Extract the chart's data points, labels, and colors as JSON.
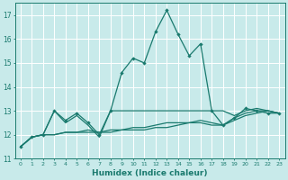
{
  "x": [
    0,
    1,
    2,
    3,
    4,
    5,
    6,
    7,
    8,
    9,
    10,
    11,
    12,
    13,
    14,
    15,
    16,
    17,
    18,
    19,
    20,
    21,
    22,
    23
  ],
  "line_main": [
    11.5,
    11.9,
    12.0,
    13.0,
    12.6,
    12.9,
    12.5,
    12.0,
    13.0,
    14.6,
    15.2,
    15.0,
    16.3,
    17.2,
    16.2,
    15.3,
    15.8,
    13.0,
    12.4,
    12.7,
    13.1,
    13.0,
    12.9,
    12.9
  ],
  "line_flat1": [
    11.5,
    11.9,
    12.0,
    13.0,
    12.5,
    12.8,
    12.4,
    11.9,
    13.0,
    13.0,
    13.0,
    13.0,
    13.0,
    13.0,
    13.0,
    13.0,
    13.0,
    13.0,
    13.0,
    12.8,
    13.0,
    13.1,
    13.0,
    12.9
  ],
  "line_flat2": [
    11.5,
    11.9,
    12.0,
    12.0,
    12.1,
    12.1,
    12.2,
    12.1,
    12.2,
    12.2,
    12.3,
    12.3,
    12.4,
    12.5,
    12.5,
    12.5,
    12.6,
    12.5,
    12.4,
    12.7,
    12.9,
    13.0,
    13.0,
    12.9
  ],
  "line_flat3": [
    11.5,
    11.9,
    12.0,
    12.0,
    12.1,
    12.1,
    12.1,
    12.1,
    12.1,
    12.2,
    12.2,
    12.2,
    12.3,
    12.3,
    12.4,
    12.5,
    12.5,
    12.4,
    12.4,
    12.6,
    12.8,
    12.9,
    13.0,
    12.9
  ],
  "color": "#1a7a6e",
  "bg_color": "#c8eaea",
  "grid_color": "#b0d0d0",
  "xlim": [
    -0.5,
    23.5
  ],
  "ylim": [
    11,
    17.5
  ],
  "yticks": [
    11,
    12,
    13,
    14,
    15,
    16,
    17
  ],
  "xticks": [
    0,
    1,
    2,
    3,
    4,
    5,
    6,
    7,
    8,
    9,
    10,
    11,
    12,
    13,
    14,
    15,
    16,
    17,
    18,
    19,
    20,
    21,
    22,
    23
  ],
  "xlabel": "Humidex (Indice chaleur)"
}
